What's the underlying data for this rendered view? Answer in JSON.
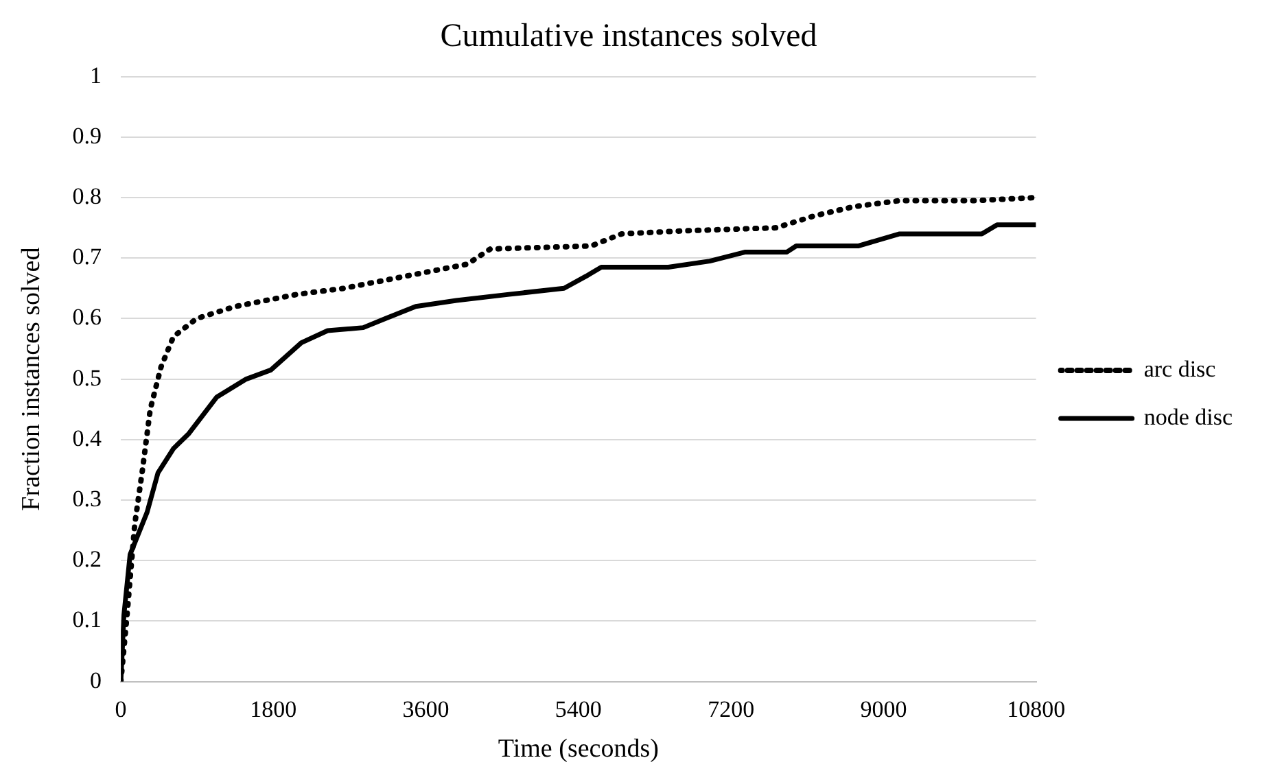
{
  "chart_data": {
    "type": "line",
    "title": "Cumulative instances solved",
    "xlabel": "Time (seconds)",
    "ylabel": "Fraction instances solved",
    "xlim": [
      0,
      10800
    ],
    "xticks": [
      0,
      1800,
      3600,
      5400,
      7200,
      9000,
      10800
    ],
    "ylim": [
      0,
      1
    ],
    "yticks": [
      0,
      0.1,
      0.2,
      0.3,
      0.4,
      0.5,
      0.6,
      0.7,
      0.8,
      0.9,
      1
    ],
    "grid": "y",
    "legend": "right",
    "marker": "none",
    "series": [
      {
        "name": "arc disc",
        "color": "#000000",
        "line_style": "dotted",
        "x": [
          0,
          73,
          164,
          255,
          347,
          474,
          620,
          894,
          1350,
          2080,
          2630,
          3360,
          4090,
          4360,
          5550,
          5910,
          6640,
          7730,
          8190,
          8650,
          9190,
          10100,
          10800
        ],
        "values": [
          0,
          0.11,
          0.26,
          0.35,
          0.45,
          0.52,
          0.57,
          0.6,
          0.62,
          0.64,
          0.65,
          0.67,
          0.69,
          0.715,
          0.72,
          0.74,
          0.745,
          0.75,
          0.77,
          0.785,
          0.795,
          0.795,
          0.8
        ]
      },
      {
        "name": "node disc",
        "color": "#000000",
        "line_style": "solid",
        "x": [
          0,
          36,
          109,
          310,
          438,
          620,
          803,
          1130,
          1480,
          1770,
          2130,
          2440,
          2860,
          3120,
          3480,
          3960,
          4580,
          5230,
          5490,
          5550,
          5670,
          6460,
          6950,
          7370,
          7860,
          7970,
          8700,
          9190,
          10160,
          10340,
          10800
        ],
        "values": [
          0,
          0.11,
          0.21,
          0.28,
          0.345,
          0.385,
          0.41,
          0.47,
          0.5,
          0.515,
          0.56,
          0.58,
          0.585,
          0.6,
          0.62,
          0.63,
          0.64,
          0.65,
          0.67,
          0.675,
          0.685,
          0.685,
          0.695,
          0.71,
          0.71,
          0.72,
          0.72,
          0.74,
          0.74,
          0.755,
          0.755
        ]
      }
    ]
  }
}
